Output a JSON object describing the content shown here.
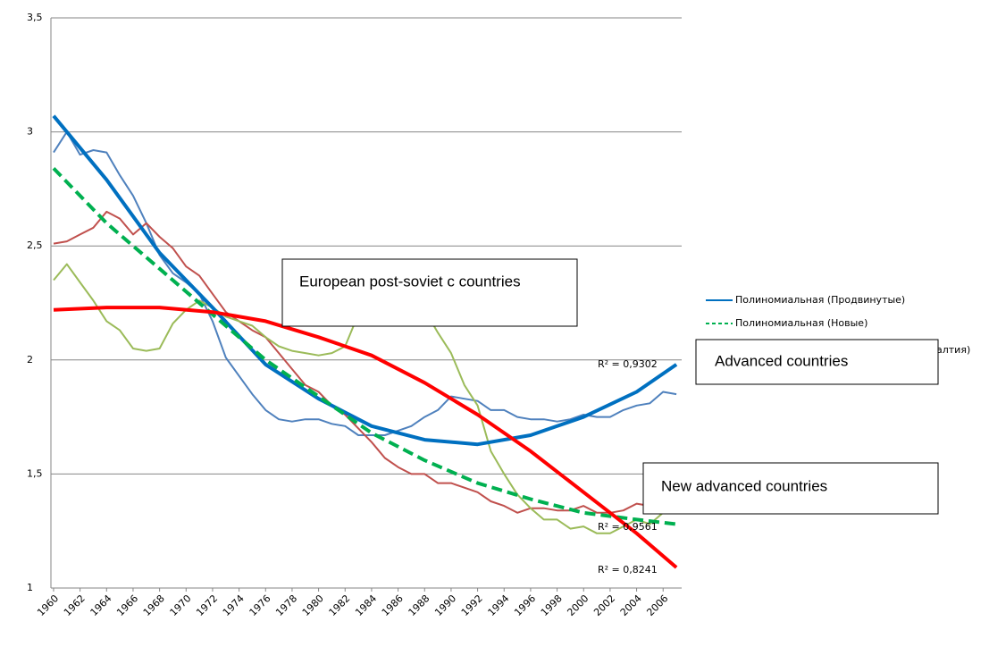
{
  "chart_data": {
    "type": "line",
    "x": [
      1960,
      1961,
      1962,
      1963,
      1964,
      1965,
      1966,
      1967,
      1968,
      1969,
      1970,
      1971,
      1972,
      1973,
      1974,
      1975,
      1976,
      1977,
      1978,
      1979,
      1980,
      1981,
      1982,
      1983,
      1984,
      1985,
      1986,
      1987,
      1988,
      1989,
      1990,
      1991,
      1992,
      1993,
      1994,
      1995,
      1996,
      1997,
      1998,
      1999,
      2000,
      2001,
      2002,
      2003,
      2004,
      2005,
      2006,
      2007
    ],
    "xlim": [
      1959.8,
      2007.4
    ],
    "xticks": [
      1960,
      1962,
      1964,
      1966,
      1968,
      1970,
      1972,
      1974,
      1976,
      1978,
      1980,
      1982,
      1984,
      1986,
      1988,
      1990,
      1992,
      1994,
      1996,
      1998,
      2000,
      2002,
      2004,
      2006
    ],
    "ylim": [
      1,
      3.5
    ],
    "yticks": [
      1,
      {
        "value": 1.5,
        "label": "1,5"
      },
      2,
      {
        "value": 2.5,
        "label": "2,5"
      },
      3,
      {
        "value": 3.5,
        "label": "3,5"
      }
    ],
    "grid": true,
    "series": [
      {
        "color": "#4f81bd",
        "values": [
          2.91,
          3.0,
          2.9,
          2.92,
          2.91,
          2.81,
          2.72,
          2.6,
          2.46,
          2.38,
          2.34,
          2.29,
          2.17,
          2.01,
          1.93,
          1.85,
          1.78,
          1.74,
          1.73,
          1.74,
          1.74,
          1.72,
          1.71,
          1.67,
          1.67,
          1.67,
          1.69,
          1.71,
          1.75,
          1.78,
          1.84,
          1.83,
          1.82,
          1.78,
          1.78,
          1.75,
          1.74,
          1.74,
          1.73,
          1.74,
          1.76,
          1.75,
          1.75,
          1.78,
          1.8,
          1.81,
          1.86,
          1.85
        ]
      },
      {
        "color": "#c0504d",
        "values": [
          2.51,
          2.52,
          2.55,
          2.58,
          2.65,
          2.62,
          2.55,
          2.6,
          2.54,
          2.49,
          2.41,
          2.37,
          2.29,
          2.21,
          2.17,
          2.13,
          2.1,
          2.03,
          1.96,
          1.89,
          1.86,
          1.8,
          1.76,
          1.7,
          1.64,
          1.57,
          1.53,
          1.5,
          1.5,
          1.46,
          1.46,
          1.44,
          1.42,
          1.38,
          1.36,
          1.33,
          1.35,
          1.35,
          1.34,
          1.34,
          1.36,
          1.33,
          1.33,
          1.34,
          1.37,
          1.36,
          1.35,
          1.35
        ]
      },
      {
        "color": "#9bbb59",
        "values": [
          2.35,
          2.42,
          2.34,
          2.26,
          2.17,
          2.13,
          2.05,
          2.04,
          2.05,
          2.16,
          2.22,
          2.26,
          2.23,
          2.19,
          2.17,
          2.15,
          2.1,
          2.06,
          2.04,
          2.03,
          2.02,
          2.03,
          2.06,
          2.2,
          2.3,
          2.3,
          2.28,
          2.25,
          2.22,
          2.12,
          2.03,
          1.89,
          1.8,
          1.6,
          1.5,
          1.41,
          1.35,
          1.3,
          1.3,
          1.26,
          1.27,
          1.24,
          1.24,
          1.27,
          1.3,
          1.28,
          1.33,
          1.34
        ]
      },
      {
        "name": "Полиномиальная (Продвинутые)",
        "color": "#0070c0",
        "width": 4,
        "x": [
          1960,
          1964,
          1968,
          1972,
          1976,
          1980,
          1984,
          1988,
          1992,
          1996,
          2000,
          2004,
          2007
        ],
        "values": [
          3.07,
          2.79,
          2.47,
          2.23,
          1.98,
          1.83,
          1.71,
          1.65,
          1.63,
          1.67,
          1.75,
          1.86,
          1.98
        ]
      },
      {
        "name": "Полиномиальная (Новые)",
        "color": "#00b050",
        "width": 4,
        "dashed": true,
        "x": [
          1960,
          1964,
          1968,
          1972,
          1976,
          1980,
          1984,
          1988,
          1992,
          1996,
          2000,
          2004,
          2007
        ],
        "values": [
          2.84,
          2.6,
          2.4,
          2.2,
          2.0,
          1.84,
          1.68,
          1.56,
          1.46,
          1.39,
          1.33,
          1.3,
          1.28
        ]
      },
      {
        "color": "#ff0000",
        "width": 4,
        "x": [
          1960,
          1964,
          1968,
          1972,
          1976,
          1980,
          1984,
          1988,
          1992,
          1996,
          2000,
          2004,
          2007
        ],
        "values": [
          2.22,
          2.23,
          2.23,
          2.21,
          2.17,
          2.1,
          2.02,
          1.9,
          1.76,
          1.6,
          1.42,
          1.24,
          1.09
        ]
      }
    ],
    "legend_fragment": "алтия)",
    "r_squared": [
      "R² = 0,9302",
      "R² = 0,9561",
      "R² = 0,8241"
    ],
    "text_boxes": [
      "European post-soviet c countries",
      "Advanced countries",
      "New advanced countries"
    ]
  }
}
